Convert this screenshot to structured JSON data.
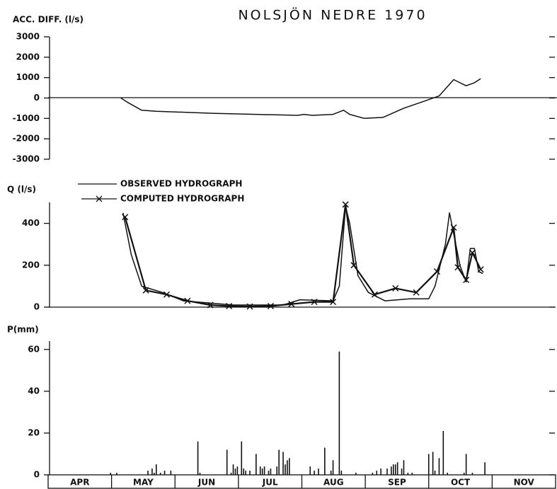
{
  "title": "NOLSJÖN NEDRE 1970",
  "chart_data": [
    {
      "type": "line",
      "y_label": "ACC. DIFF. (l/s)",
      "xlim": [
        0,
        244
      ],
      "ylim": [
        -3000,
        3000
      ],
      "yticks": [
        3000,
        2000,
        1000,
        0,
        -1000,
        -2000,
        -3000
      ],
      "series": [
        {
          "color": "#111111",
          "x": [
            35,
            38,
            45,
            52,
            79,
            120,
            123,
            127,
            137,
            142,
            145,
            152,
            161,
            171,
            181,
            188,
            195,
            201,
            205,
            208
          ],
          "values": [
            0,
            -200,
            -600,
            -650,
            -750,
            -850,
            -800,
            -850,
            -800,
            -600,
            -800,
            -1000,
            -950,
            -500,
            -150,
            100,
            900,
            600,
            750,
            950
          ]
        }
      ]
    },
    {
      "type": "line",
      "y_label": "Q (l/s)",
      "xlim": [
        0,
        244
      ],
      "ylim": [
        0,
        500
      ],
      "yticks": [
        0,
        200,
        400
      ],
      "series": [
        {
          "name": "OBSERVED HYDROGRAPH",
          "color": "#111111",
          "x": [
            36,
            40,
            45,
            55,
            65,
            89,
            113,
            121,
            137,
            140,
            143,
            145,
            149,
            154,
            162,
            174,
            183,
            186,
            191,
            193,
            196,
            198,
            201,
            203,
            205,
            207,
            209
          ],
          "values": [
            450,
            250,
            100,
            70,
            30,
            10,
            10,
            35,
            30,
            100,
            480,
            400,
            150,
            70,
            30,
            40,
            40,
            100,
            300,
            450,
            300,
            200,
            120,
            280,
            280,
            170,
            160
          ]
        },
        {
          "name": "COMPUTED HYDROGRAPH",
          "color": "#111111",
          "marker": "x",
          "x": [
            37,
            47,
            57,
            67,
            78,
            87,
            97,
            107,
            117,
            128,
            137,
            143,
            147,
            157,
            167,
            177,
            187,
            195,
            197,
            201,
            204,
            208
          ],
          "values": [
            430,
            80,
            60,
            30,
            10,
            5,
            3,
            5,
            15,
            25,
            25,
            490,
            200,
            60,
            90,
            70,
            170,
            380,
            190,
            130,
            260,
            180
          ]
        }
      ]
    },
    {
      "type": "bar",
      "y_label": "P(mm)",
      "xlim": [
        0,
        244
      ],
      "ylim": [
        0,
        64
      ],
      "yticks": [
        0,
        20,
        40,
        60
      ],
      "color": "#111111",
      "categories": [
        "APR",
        "MAY",
        "JUN",
        "JUL",
        "AUG",
        "SEP",
        "OCT",
        "NOV"
      ],
      "x": [
        30,
        33,
        48,
        50,
        51,
        52,
        54,
        56,
        59,
        72,
        73,
        86,
        88,
        89,
        90,
        91,
        93,
        94,
        95,
        97,
        100,
        102,
        103,
        104,
        106,
        107,
        110,
        111,
        113,
        114,
        115,
        116,
        126,
        128,
        130,
        133,
        136,
        137,
        140,
        141,
        148,
        156,
        158,
        160,
        163,
        165,
        166,
        167,
        168,
        170,
        171,
        173,
        175,
        183,
        185,
        186,
        188,
        190,
        192,
        200,
        201,
        204,
        210
      ],
      "values": [
        1,
        1,
        2,
        3,
        1,
        5,
        1,
        2,
        2,
        16,
        1,
        12,
        1,
        5,
        3,
        4,
        16,
        3,
        2,
        2,
        10,
        4,
        3,
        4,
        2,
        3,
        4,
        12,
        11,
        5,
        7,
        8,
        4,
        2,
        3,
        13,
        2,
        7,
        59,
        2,
        1,
        1,
        2,
        3,
        3,
        4,
        5,
        5,
        6,
        3,
        7,
        1,
        1,
        10,
        11,
        2,
        8,
        21,
        1,
        1,
        10,
        1,
        6
      ]
    }
  ]
}
